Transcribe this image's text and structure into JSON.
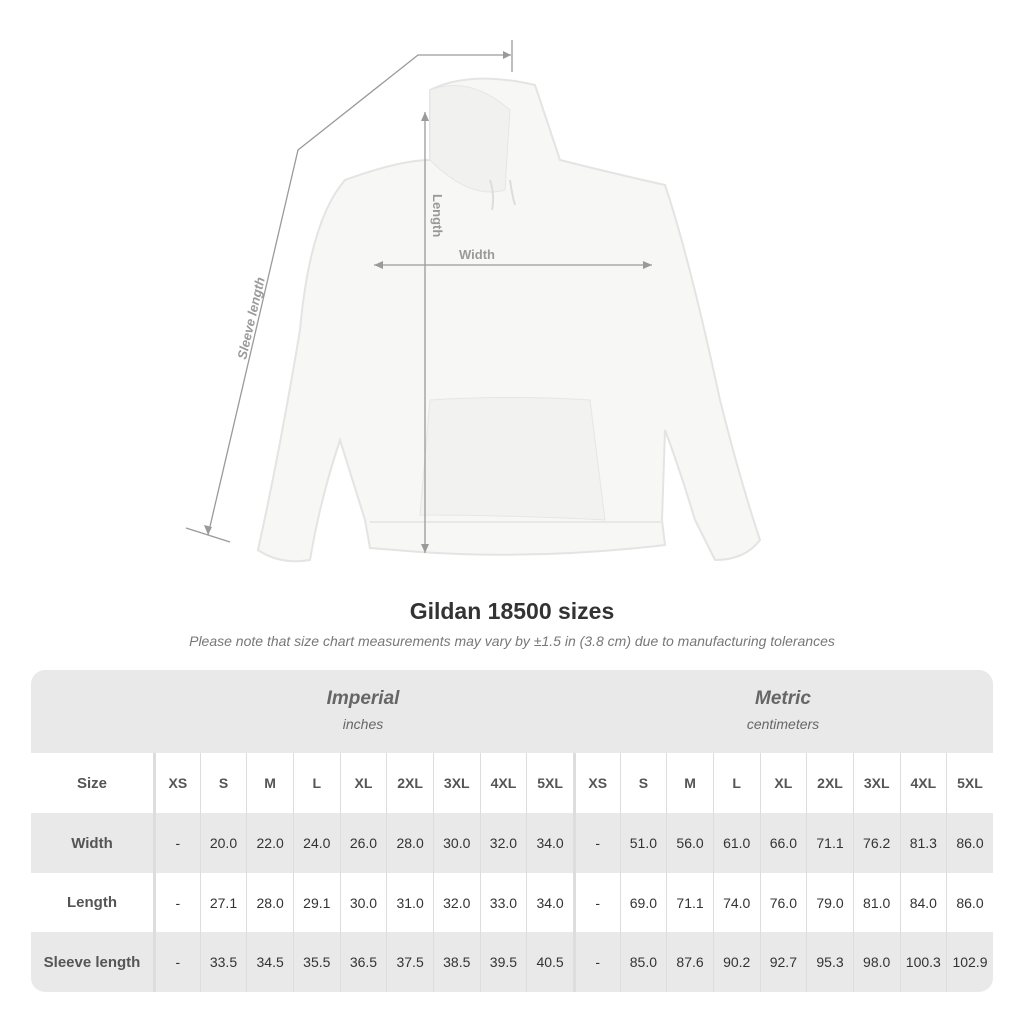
{
  "illustration": {
    "labels": {
      "sleeve": "Sleeve length",
      "length": "Length",
      "width": "Width"
    }
  },
  "title": "Gildan 18500 sizes",
  "subtitle": "Please note that size chart measurements may vary by ±1.5 in (3.8 cm) due to manufacturing tolerances",
  "table": {
    "imperial": {
      "name": "Imperial",
      "unit": "inches"
    },
    "metric": {
      "name": "Metric",
      "unit": "centimeters"
    },
    "size_label": "Size",
    "sizes": [
      "XS",
      "S",
      "M",
      "L",
      "XL",
      "2XL",
      "3XL",
      "4XL",
      "5XL"
    ],
    "rows": [
      {
        "label": "Width",
        "imperial": [
          "-",
          "20.0",
          "22.0",
          "24.0",
          "26.0",
          "28.0",
          "30.0",
          "32.0",
          "34.0"
        ],
        "metric": [
          "-",
          "51.0",
          "56.0",
          "61.0",
          "66.0",
          "71.1",
          "76.2",
          "81.3",
          "86.0"
        ]
      },
      {
        "label": "Length",
        "imperial": [
          "-",
          "27.1",
          "28.0",
          "29.1",
          "30.0",
          "31.0",
          "32.0",
          "33.0",
          "34.0"
        ],
        "metric": [
          "-",
          "69.0",
          "71.1",
          "74.0",
          "76.0",
          "79.0",
          "81.0",
          "84.0",
          "86.0"
        ]
      },
      {
        "label": "Sleeve length",
        "imperial": [
          "-",
          "33.5",
          "34.5",
          "35.5",
          "36.5",
          "37.5",
          "38.5",
          "39.5",
          "40.5"
        ],
        "metric": [
          "-",
          "85.0",
          "87.6",
          "90.2",
          "92.7",
          "95.3",
          "98.0",
          "100.3",
          "102.9"
        ]
      }
    ]
  }
}
